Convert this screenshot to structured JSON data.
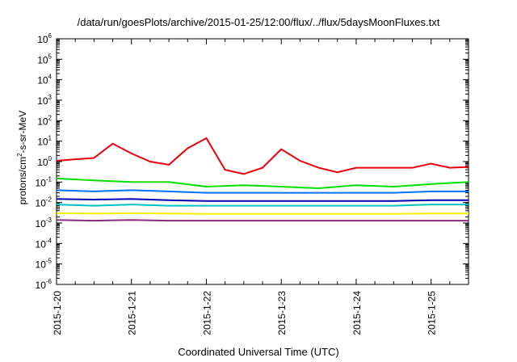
{
  "chart_data": {
    "type": "line",
    "title": "/data/run/goesPlots/archive/2015-01-25/12:00/flux/../flux/5daysMoonFluxes.txt",
    "xlabel": "Coordinated Universal Time (UTC)",
    "ylabel_parts": [
      "protons/cm",
      "2",
      "-s-sr-MeV"
    ],
    "yscale": "log",
    "ylim": [
      1e-06,
      1000000.0
    ],
    "y_ticks": [
      {
        "base": "10",
        "exp": "-6",
        "value": 1e-06
      },
      {
        "base": "10",
        "exp": "-5",
        "value": 1e-05
      },
      {
        "base": "10",
        "exp": "-4",
        "value": 0.0001
      },
      {
        "base": "10",
        "exp": "-3",
        "value": 0.001
      },
      {
        "base": "10",
        "exp": "-2",
        "value": 0.01
      },
      {
        "base": "10",
        "exp": "-1",
        "value": 0.1
      },
      {
        "base": "10",
        "exp": "0",
        "value": 1
      },
      {
        "base": "10",
        "exp": "1",
        "value": 10
      },
      {
        "base": "10",
        "exp": "2",
        "value": 100
      },
      {
        "base": "10",
        "exp": "3",
        "value": 1000
      },
      {
        "base": "10",
        "exp": "4",
        "value": 10000
      },
      {
        "base": "10",
        "exp": "5",
        "value": 100000
      },
      {
        "base": "10",
        "exp": "6",
        "value": 1000000
      }
    ],
    "xlim": [
      "2015-01-20T00:00",
      "2015-01-25T12:00"
    ],
    "x_ticks": [
      "2015-1-20",
      "2015-1-21",
      "2015-1-22",
      "2015-1-23",
      "2015-1-24",
      "2015-1-25"
    ],
    "grid": false,
    "series": [
      {
        "color": "#e8000b",
        "x": [
          "2015-01-20T00:00",
          "2015-01-20T06:00",
          "2015-01-20T12:00",
          "2015-01-20T18:00",
          "2015-01-21T00:00",
          "2015-01-21T06:00",
          "2015-01-21T12:00",
          "2015-01-21T18:00",
          "2015-01-22T00:00",
          "2015-01-22T06:00",
          "2015-01-22T12:00",
          "2015-01-22T18:00",
          "2015-01-23T00:00",
          "2015-01-23T06:00",
          "2015-01-23T12:00",
          "2015-01-23T18:00",
          "2015-01-24T00:00",
          "2015-01-24T06:00",
          "2015-01-24T12:00",
          "2015-01-24T18:00",
          "2015-01-25T00:00",
          "2015-01-25T06:00",
          "2015-01-25T12:00"
        ],
        "y": [
          1.1,
          1.3,
          1.5,
          7.5,
          2.5,
          1.0,
          0.7,
          4.5,
          14,
          0.4,
          0.25,
          0.5,
          4.0,
          1.1,
          0.5,
          0.3,
          0.5,
          0.5,
          0.5,
          0.5,
          0.8,
          0.5,
          0.55
        ]
      },
      {
        "color": "#00e000",
        "x": [
          "2015-01-20T00:00",
          "2015-01-20T12:00",
          "2015-01-21T00:00",
          "2015-01-21T12:00",
          "2015-01-22T00:00",
          "2015-01-22T12:00",
          "2015-01-23T00:00",
          "2015-01-23T12:00",
          "2015-01-24T00:00",
          "2015-01-24T12:00",
          "2015-01-25T00:00",
          "2015-01-25T12:00"
        ],
        "y": [
          0.15,
          0.12,
          0.1,
          0.1,
          0.06,
          0.07,
          0.06,
          0.05,
          0.07,
          0.06,
          0.08,
          0.1
        ]
      },
      {
        "color": "#0070ff",
        "x": [
          "2015-01-20T00:00",
          "2015-01-20T12:00",
          "2015-01-21T00:00",
          "2015-01-21T12:00",
          "2015-01-22T00:00",
          "2015-01-22T12:00",
          "2015-01-23T00:00",
          "2015-01-23T12:00",
          "2015-01-24T00:00",
          "2015-01-24T12:00",
          "2015-01-25T00:00",
          "2015-01-25T12:00"
        ],
        "y": [
          0.04,
          0.035,
          0.04,
          0.035,
          0.03,
          0.03,
          0.03,
          0.03,
          0.03,
          0.03,
          0.035,
          0.035
        ]
      },
      {
        "color": "#0000b0",
        "x": [
          "2015-01-20T00:00",
          "2015-01-20T12:00",
          "2015-01-21T00:00",
          "2015-01-21T12:00",
          "2015-01-22T00:00",
          "2015-01-22T12:00",
          "2015-01-23T00:00",
          "2015-01-23T12:00",
          "2015-01-24T00:00",
          "2015-01-24T12:00",
          "2015-01-25T00:00",
          "2015-01-25T12:00"
        ],
        "y": [
          0.015,
          0.014,
          0.015,
          0.013,
          0.012,
          0.012,
          0.012,
          0.012,
          0.012,
          0.012,
          0.013,
          0.013
        ]
      },
      {
        "color": "#00c0c0",
        "x": [
          "2015-01-20T00:00",
          "2015-01-20T12:00",
          "2015-01-21T00:00",
          "2015-01-21T12:00",
          "2015-01-22T00:00",
          "2015-01-22T12:00",
          "2015-01-23T00:00",
          "2015-01-23T12:00",
          "2015-01-24T00:00",
          "2015-01-24T12:00",
          "2015-01-25T00:00",
          "2015-01-25T12:00"
        ],
        "y": [
          0.008,
          0.007,
          0.008,
          0.007,
          0.007,
          0.007,
          0.007,
          0.007,
          0.007,
          0.007,
          0.008,
          0.008
        ]
      },
      {
        "color": "#f5f000",
        "x": [
          "2015-01-20T00:00",
          "2015-01-20T12:00",
          "2015-01-21T00:00",
          "2015-01-21T12:00",
          "2015-01-22T00:00",
          "2015-01-22T12:00",
          "2015-01-23T00:00",
          "2015-01-23T12:00",
          "2015-01-24T00:00",
          "2015-01-24T12:00",
          "2015-01-25T00:00",
          "2015-01-25T12:00"
        ],
        "y": [
          0.003,
          0.0029,
          0.003,
          0.0029,
          0.0028,
          0.0028,
          0.0028,
          0.0028,
          0.0028,
          0.0028,
          0.0029,
          0.0029
        ]
      },
      {
        "color": "#8b2a7a",
        "x": [
          "2015-01-20T00:00",
          "2015-01-20T12:00",
          "2015-01-21T00:00",
          "2015-01-21T12:00",
          "2015-01-22T00:00",
          "2015-01-22T12:00",
          "2015-01-23T00:00",
          "2015-01-23T12:00",
          "2015-01-24T00:00",
          "2015-01-24T12:00",
          "2015-01-25T00:00",
          "2015-01-25T12:00"
        ],
        "y": [
          0.0014,
          0.0013,
          0.0014,
          0.0013,
          0.0013,
          0.0013,
          0.0013,
          0.0013,
          0.0013,
          0.0013,
          0.0013,
          0.0013
        ]
      }
    ]
  }
}
